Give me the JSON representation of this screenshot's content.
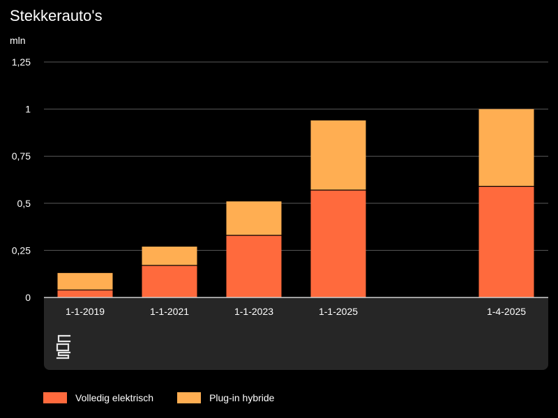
{
  "chart_data": {
    "type": "bar",
    "stacked": true,
    "title": "Stekkerauto's",
    "unit_label": "mln",
    "categories": [
      "1-1-2019",
      "1-1-2021",
      "1-1-2023",
      "1-1-2025",
      "1-4-2025"
    ],
    "series": [
      {
        "name": "Volledig elektrisch",
        "color": "#ff6a3d",
        "values": [
          0.04,
          0.17,
          0.33,
          0.57,
          0.59
        ]
      },
      {
        "name": "Plug-in hybride",
        "color": "#ffae52",
        "values": [
          0.09,
          0.1,
          0.18,
          0.37,
          0.41
        ]
      }
    ],
    "ylim": [
      0,
      1.25
    ],
    "yticks": [
      {
        "value": 0,
        "label": "0"
      },
      {
        "value": 0.25,
        "label": "0,25"
      },
      {
        "value": 0.5,
        "label": "0,5"
      },
      {
        "value": 0.75,
        "label": "0,75"
      },
      {
        "value": 1,
        "label": "1"
      },
      {
        "value": 1.25,
        "label": "1,25"
      }
    ],
    "grid": true,
    "legend_position": "bottom-left",
    "gridline_color": "#5a5a5a",
    "axis_panel_color": "#262626",
    "logo_icon": "cbs-logo-icon"
  }
}
